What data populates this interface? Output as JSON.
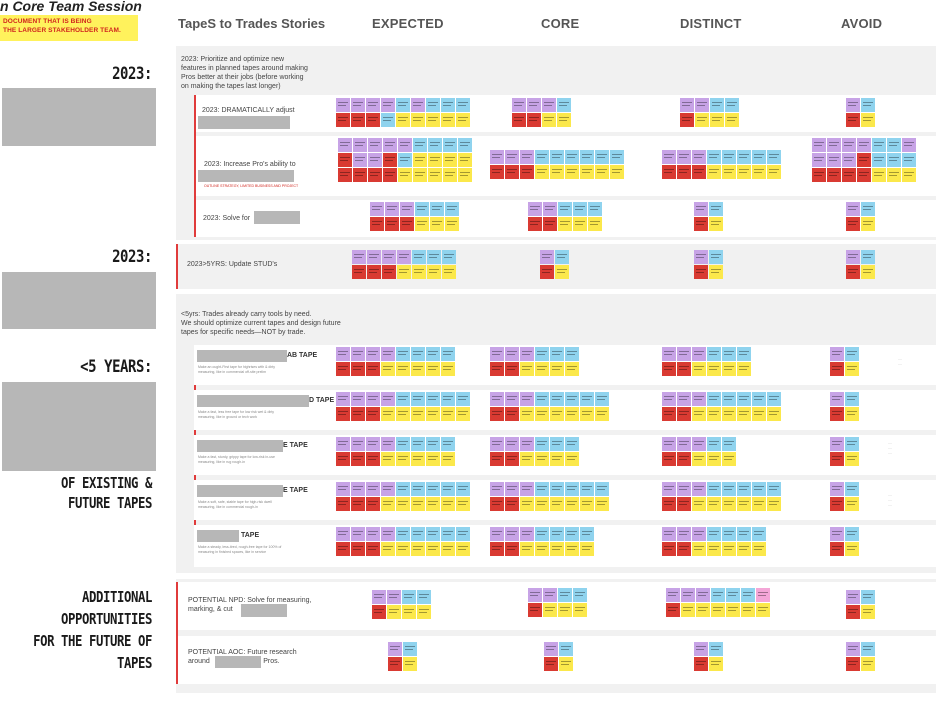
{
  "session_title": "n Core Team Session",
  "note": [
    "DOCUMENT THAT IS BEING",
    "THE LARGER STAKEHOLDER TEAM."
  ],
  "left_labels": {
    "y2023_a": "2023:",
    "y2023_b": "2023:",
    "lt5": "<5 YEARS:",
    "existing": [
      "OF EXISTING &",
      "FUTURE TAPES"
    ],
    "additional": [
      "ADDITIONAL",
      "OPPORTUNITIES",
      "FOR THE FUTURE OF",
      "TAPES"
    ]
  },
  "columns": {
    "title": "TapeS to Trades Stories",
    "expected": "EXPECTED",
    "core": "CORE",
    "distinct": "DISTINCT",
    "avoid": "AVOID"
  },
  "section1": {
    "header": [
      "2023: Prioritize and optimize new",
      "features in planned tapes around making",
      "Pros better at their jobs (before working",
      "on making the tapes last longer)"
    ],
    "rows": [
      {
        "label": "2023: DRAMATICALLY adjust"
      },
      {
        "label": "2023: Increase Pro's ability to",
        "sub": "OUTLINE STRATEGY, LIMITED BUSINESS AND PROJECT"
      },
      {
        "label": "2023: Solve for"
      }
    ]
  },
  "section2": {
    "label": "2023>5YRS: Update STUD's"
  },
  "section3": {
    "header": [
      "<5yrs: Trades already carry tools by need.",
      "We should optimize current tapes and design future",
      "tapes for specific needs—NOT by trade."
    ],
    "rows": [
      {
        "title": "AB TAPE",
        "desc": [
          "Make an ought-First tape for highrises with & dirty",
          "measuring, like in commercial off-site prelim"
        ]
      },
      {
        "title": "D TAPE",
        "desc": [
          "Make a fast, less free tape for low risk wet & dirty",
          "measuring, like in ground or tech work"
        ]
      },
      {
        "title": "E TAPE",
        "desc": [
          "Make a fast, sturdy, grippy tape for low-risk in-use",
          "measuring, like in rug rough-in"
        ]
      },
      {
        "title": "E TAPE",
        "desc": [
          "Make a soft, safe, stable tape for high-risk dwell",
          "measuring, like in commercial rough-in"
        ]
      },
      {
        "title": "TAPE",
        "desc": [
          "Make a steady, less-tired, rough-free tape for 100% of",
          "measuring in finished spaces, like in service"
        ]
      }
    ]
  },
  "section4": {
    "rows": [
      {
        "label": [
          "POTENTIAL NPD: Solve for measuring,",
          "marking, & cut"
        ]
      },
      {
        "label": [
          "POTENTIAL AOC: Future research",
          "around",
          "s Pros."
        ]
      }
    ]
  }
}
